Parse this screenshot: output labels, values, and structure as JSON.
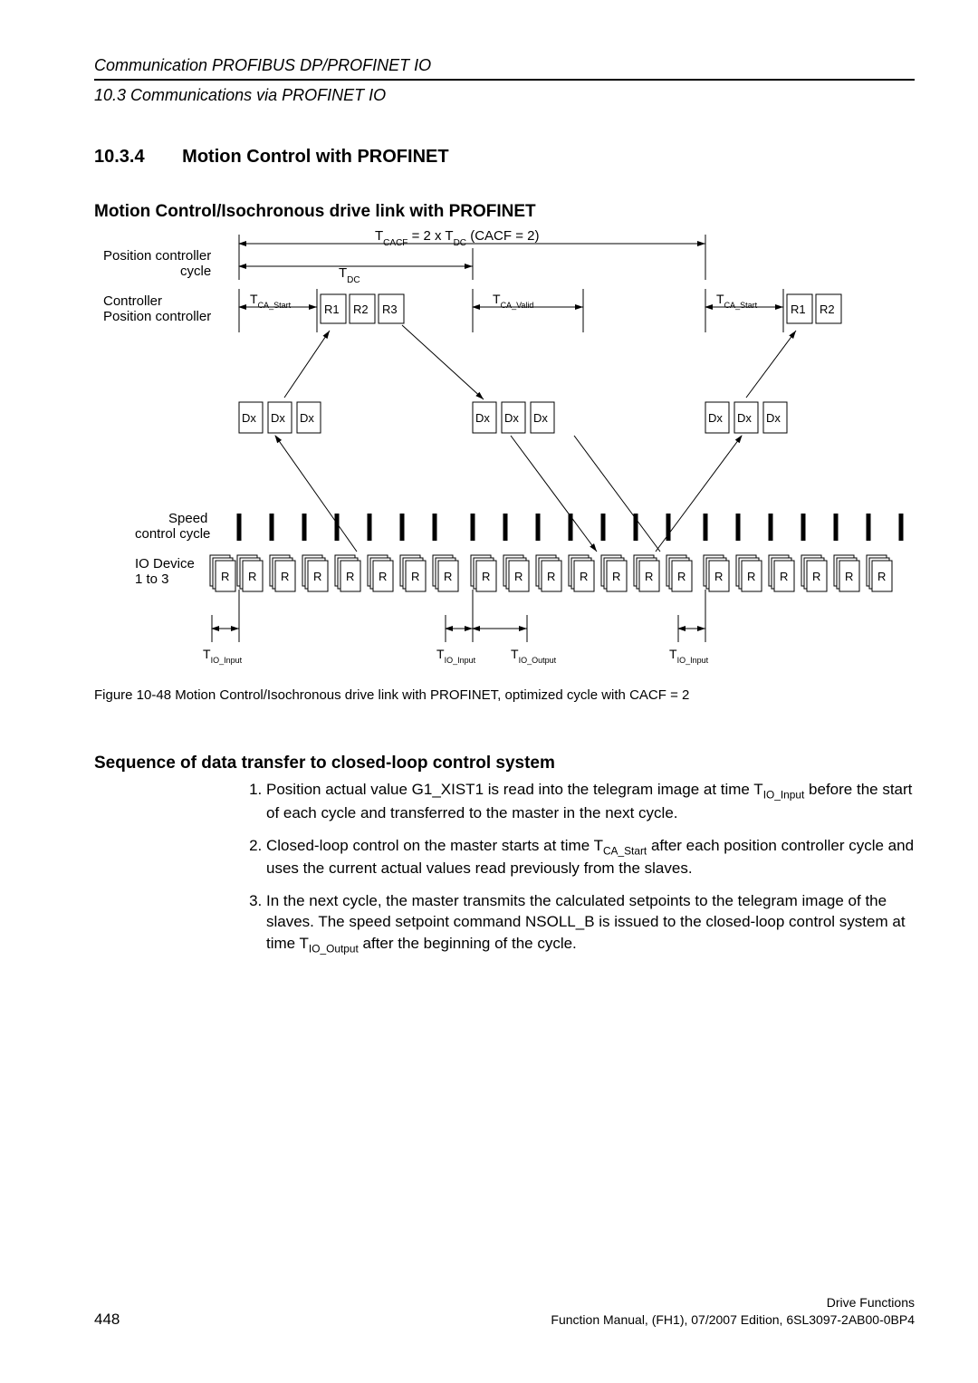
{
  "header": {
    "line1": "Communication PROFIBUS DP/PROFINET IO",
    "line2": "10.3 Communications via PROFINET IO"
  },
  "section": {
    "number": "10.3.4",
    "title": "Motion Control with PROFINET"
  },
  "sub1": "Motion Control/Isochronous drive link with PROFINET",
  "diagram": {
    "background": "#ffffff",
    "stroke": "#000000",
    "labels": {
      "tcacf": "T",
      "tcacf_sub": "CACF",
      "tcacf_tail": " = 2 x T",
      "tdc_sub": "DC",
      "tcacf_end": "  (CACF = 2)",
      "pos_cycle": "Position controller\ncycle",
      "ctrl": "Controller\nPosition controller",
      "speed": "Speed\ncontrol cycle",
      "io": "IO Device\n1 to 3",
      "tdc": "T",
      "tca_start": "T",
      "tca_start_sub": "CA_Start",
      "tca_valid": "T",
      "tca_valid_sub": "CA_Valid",
      "tio_in": "T",
      "tio_in_sub": "IO_Input",
      "tio_out": "T",
      "tio_out_sub": "IO_Output",
      "R": "R",
      "R1": "R1",
      "R2": "R2",
      "R3": "R3",
      "Dx": "Dx"
    }
  },
  "caption": "Figure 10-48   Motion Control/Isochronous drive link with PROFINET, optimized cycle with CACF = 2",
  "sub2": "Sequence of data transfer to closed-loop control system",
  "list": {
    "i1a": "Position actual value G1_XIST1 is read into the telegram image at time T",
    "i1a_sub": "IO_Input",
    "i1b": " before the start of each cycle and transferred to the master in the next cycle.",
    "i2a": "Closed-loop control on the master starts at time T",
    "i2a_sub": "CA_Start",
    "i2b": " after each position controller cycle and uses the current actual values read previously from the slaves.",
    "i3a": "In the next cycle, the master transmits the calculated setpoints to the telegram image of the slaves. The speed setpoint command NSOLL_B is issued to the closed-loop control system at time T",
    "i3a_sub": "IO_Output",
    "i3b": " after the beginning of the cycle."
  },
  "footer": {
    "page": "448",
    "r1": "Drive Functions",
    "r2": "Function Manual, (FH1), 07/2007 Edition, 6SL3097-2AB00-0BP4"
  }
}
